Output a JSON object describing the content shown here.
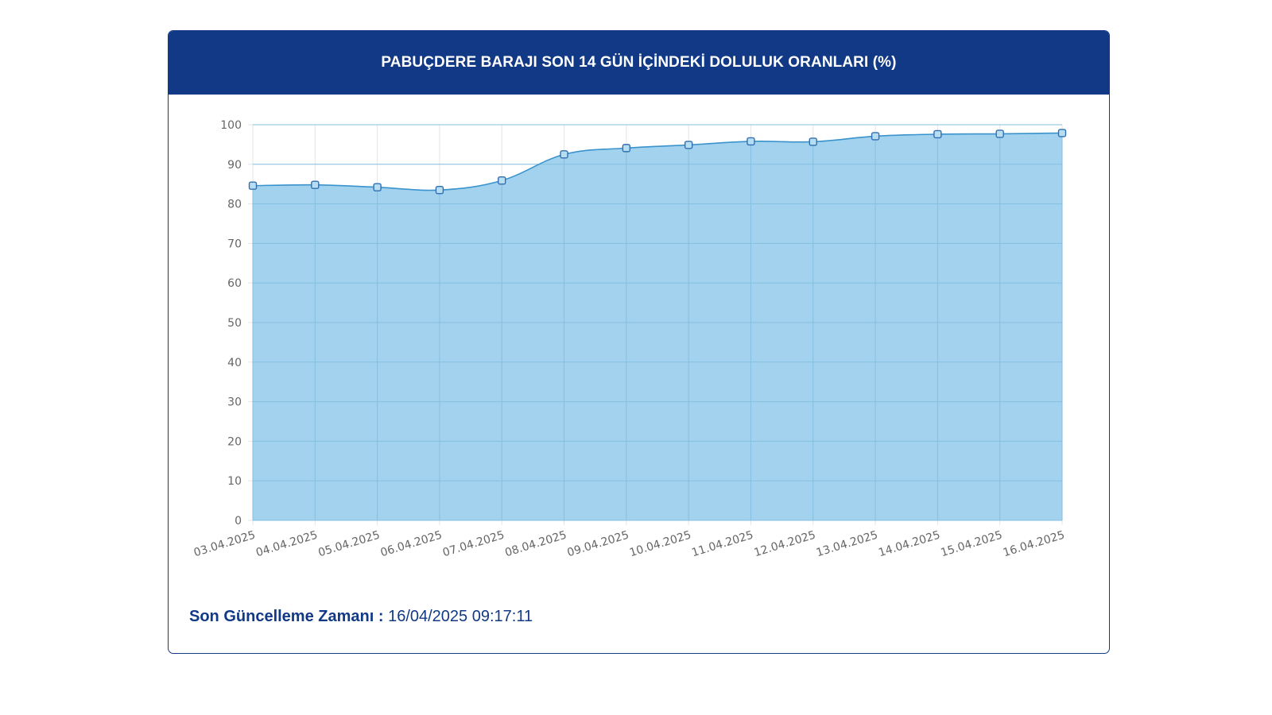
{
  "card": {
    "title": "PABUÇDERE BARAJI SON 14 GÜN İÇİNDEKİ DOLULUK ORANLARI (%)"
  },
  "footer": {
    "label": "Son Güncelleme Zamanı :",
    "value": "16/04/2025 09:17:11"
  },
  "colors": {
    "header_bg": "#113985",
    "area_fill": "#9dd0ed",
    "line": "#3a93cc",
    "grid": "#e5e5e5",
    "tick_text": "#666666"
  },
  "chart_data": {
    "type": "area",
    "title": "PABUÇDERE BARAJI SON 14 GÜN İÇİNDEKİ DOLULUK ORANLARI (%)",
    "xlabel": "",
    "ylabel": "",
    "categories": [
      "03.04.2025",
      "04.04.2025",
      "05.04.2025",
      "06.04.2025",
      "07.04.2025",
      "08.04.2025",
      "09.04.2025",
      "10.04.2025",
      "11.04.2025",
      "12.04.2025",
      "13.04.2025",
      "14.04.2025",
      "15.04.2025",
      "16.04.2025"
    ],
    "values": [
      84.6,
      84.8,
      84.2,
      83.5,
      85.9,
      92.5,
      94.1,
      94.9,
      95.8,
      95.7,
      97.1,
      97.6,
      97.7,
      97.9
    ],
    "yticks": [
      0,
      10,
      20,
      30,
      40,
      50,
      60,
      70,
      80,
      90,
      100
    ],
    "ylim": [
      0,
      100
    ],
    "grid": true,
    "legend": "none"
  }
}
